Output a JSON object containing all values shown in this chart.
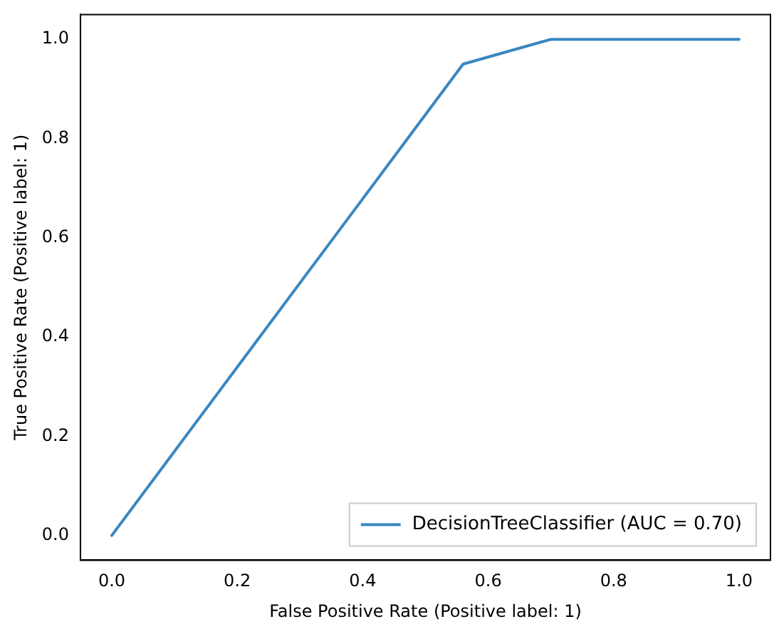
{
  "chart_data": {
    "type": "line",
    "xlabel": "False Positive Rate (Positive label: 1)",
    "ylabel": "True Positive Rate (Positive label: 1)",
    "x": [
      0,
      0.56,
      0.7,
      1.0
    ],
    "series": [
      {
        "name": "DecisionTreeClassifier (AUC = 0.70)",
        "color": "#3a87c0",
        "values": [
          0,
          0.95,
          1.0,
          1.0
        ]
      }
    ],
    "xlim": [
      -0.05,
      1.05
    ],
    "ylim": [
      -0.05,
      1.05
    ],
    "xticks": [
      {
        "value": 0,
        "label": "0.0"
      },
      {
        "value": 0.2,
        "label": "0.2"
      },
      {
        "value": 0.4,
        "label": "0.4"
      },
      {
        "value": 0.6,
        "label": "0.6"
      },
      {
        "value": 0.8,
        "label": "0.8"
      },
      {
        "value": 1,
        "label": "1.0"
      }
    ],
    "yticks": [
      {
        "value": 0,
        "label": "0.0"
      },
      {
        "value": 0.2,
        "label": "0.2"
      },
      {
        "value": 0.4,
        "label": "0.4"
      },
      {
        "value": 0.6,
        "label": "0.6"
      },
      {
        "value": 0.8,
        "label": "0.8"
      },
      {
        "value": 1,
        "label": "1.0"
      }
    ],
    "grid": false,
    "legend": "bottom right",
    "marker": "none",
    "line_style": "solid"
  }
}
